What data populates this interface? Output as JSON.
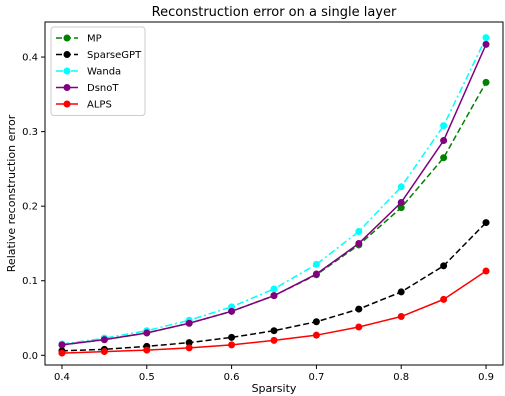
{
  "chart_data": {
    "type": "line",
    "title": "Reconstruction error on a single layer",
    "xlabel": "Sparsity",
    "ylabel": "Relative reconstruction error",
    "xlim": [
      0.38,
      0.92
    ],
    "ylim": [
      -0.013,
      0.447
    ],
    "x": [
      0.4,
      0.45,
      0.5,
      0.55,
      0.6,
      0.65,
      0.7,
      0.75,
      0.8,
      0.85,
      0.9
    ],
    "xticks": [
      {
        "value": 0.4,
        "label": "0.4"
      },
      {
        "value": 0.5,
        "label": "0.5"
      },
      {
        "value": 0.6,
        "label": "0.6"
      },
      {
        "value": 0.7,
        "label": "0.7"
      },
      {
        "value": 0.8,
        "label": "0.8"
      },
      {
        "value": 0.9,
        "label": "0.9"
      }
    ],
    "yticks": [
      {
        "value": 0.0,
        "label": "0.0"
      },
      {
        "value": 0.1,
        "label": "0.1"
      },
      {
        "value": 0.2,
        "label": "0.2"
      },
      {
        "value": 0.3,
        "label": "0.3"
      },
      {
        "value": 0.4,
        "label": "0.4"
      }
    ],
    "grid": false,
    "legend_position": "top-left",
    "series": [
      {
        "name": "MP",
        "color": "#008000",
        "linestyle": "dashed",
        "values": [
          0.014,
          0.021,
          0.03,
          0.043,
          0.059,
          0.08,
          0.108,
          0.148,
          0.198,
          0.265,
          0.366
        ]
      },
      {
        "name": "SparseGPT",
        "color": "#000000",
        "linestyle": "dashed",
        "values": [
          0.006,
          0.008,
          0.012,
          0.017,
          0.024,
          0.033,
          0.045,
          0.062,
          0.085,
          0.12,
          0.178
        ]
      },
      {
        "name": "Wanda",
        "color": "#00ffff",
        "linestyle": "dashdot",
        "values": [
          0.015,
          0.023,
          0.033,
          0.047,
          0.065,
          0.089,
          0.122,
          0.166,
          0.226,
          0.308,
          0.426
        ]
      },
      {
        "name": "DsnoT",
        "color": "#800080",
        "linestyle": "solid",
        "values": [
          0.014,
          0.021,
          0.03,
          0.043,
          0.059,
          0.08,
          0.109,
          0.15,
          0.205,
          0.288,
          0.417
        ]
      },
      {
        "name": "ALPS",
        "color": "#ff0000",
        "linestyle": "solid",
        "values": [
          0.003,
          0.005,
          0.007,
          0.01,
          0.014,
          0.02,
          0.027,
          0.038,
          0.052,
          0.075,
          0.113
        ]
      }
    ]
  }
}
